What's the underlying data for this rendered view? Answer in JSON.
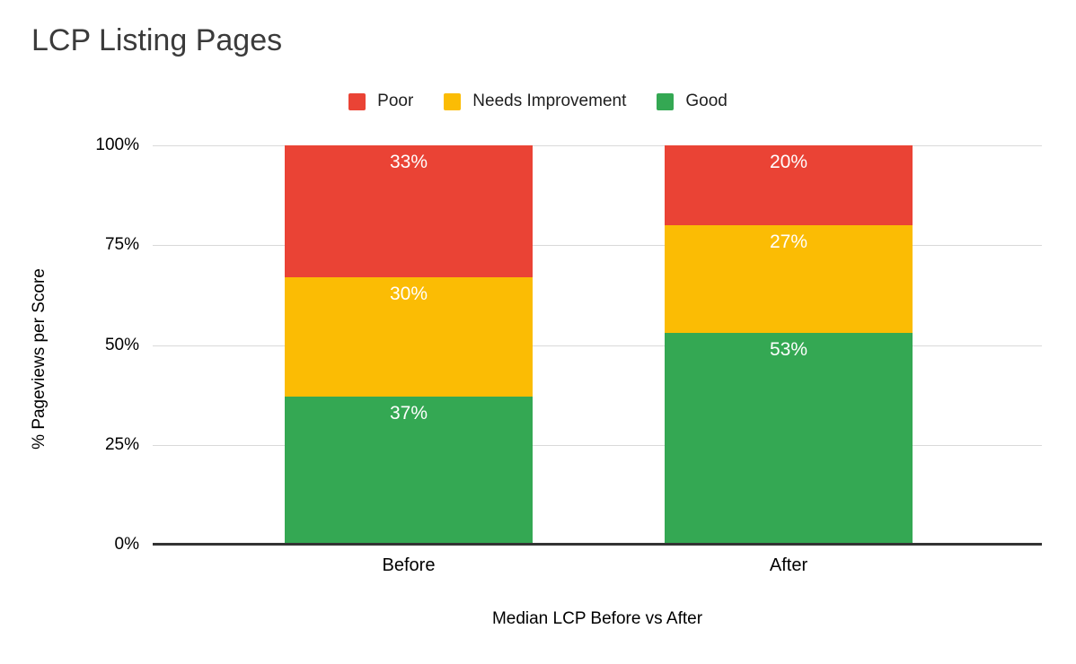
{
  "chart_data": {
    "type": "bar",
    "stacked": true,
    "title": "LCP Listing Pages",
    "xlabel": "Median LCP Before vs After",
    "ylabel": "% Pageviews per Score",
    "categories": [
      "Before",
      "After"
    ],
    "series": [
      {
        "name": "Poor",
        "color": "#EA4335",
        "values": [
          33,
          20
        ],
        "labels": [
          "33%",
          "20%"
        ]
      },
      {
        "name": "Needs Improvement",
        "color": "#FBBC04",
        "values": [
          30,
          27
        ],
        "labels": [
          "30%",
          "27%"
        ]
      },
      {
        "name": "Good",
        "color": "#34A853",
        "values": [
          37,
          53
        ],
        "labels": [
          "37%",
          "53%"
        ]
      }
    ],
    "stack_order_bottom_to_top": [
      "Good",
      "Needs Improvement",
      "Poor"
    ],
    "legend": [
      "Poor",
      "Needs Improvement",
      "Good"
    ],
    "legend_position": "top",
    "y_ticks": [
      "100%",
      "75%",
      "50%",
      "25%",
      "0%"
    ],
    "ylim": [
      0,
      100
    ],
    "grid": true
  },
  "colors": {
    "poor": "#EA4335",
    "needs_improvement": "#FBBC04",
    "good": "#34A853",
    "gridline": "#D9D9D9",
    "axis_line": "#333333",
    "title_text": "#3B3B3B",
    "axis_text": "#000000",
    "segment_label_text": "#FFFFFF",
    "background": "#FFFFFF"
  }
}
